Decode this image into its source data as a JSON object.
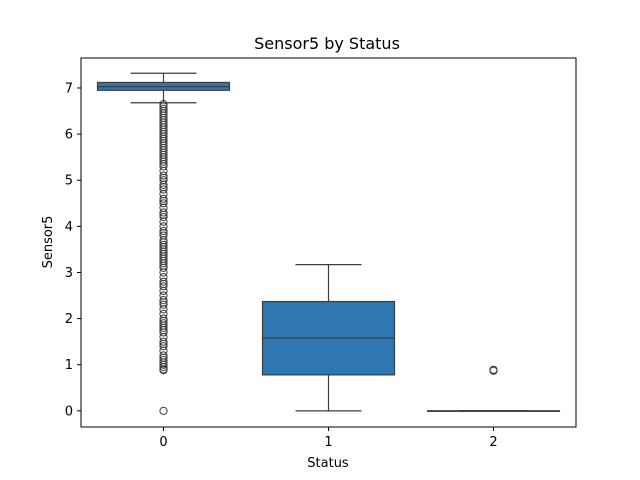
{
  "chart_data": {
    "type": "box",
    "title": "Sensor5 by Status",
    "xlabel": "Status",
    "ylabel": "Sensor5",
    "categories": [
      "0",
      "1",
      "2"
    ],
    "ylim": [
      -0.35,
      7.65
    ],
    "yticks": [
      0,
      1,
      2,
      3,
      4,
      5,
      6,
      7
    ],
    "grid": false,
    "box_color": "#2f77b1",
    "line_color": "#3d3d3d",
    "boxes": [
      {
        "category": "0",
        "whisker_low": 6.68,
        "q1": 6.95,
        "median": 7.03,
        "q3": 7.12,
        "whisker_high": 7.32,
        "outliers": [
          6.65,
          6.6,
          6.55,
          6.5,
          6.45,
          6.4,
          6.35,
          6.3,
          6.25,
          6.2,
          6.15,
          6.1,
          6.05,
          6.0,
          5.95,
          5.9,
          5.85,
          5.8,
          5.75,
          5.7,
          5.65,
          5.6,
          5.55,
          5.5,
          5.45,
          5.4,
          5.35,
          5.3,
          5.2,
          5.1,
          5.05,
          5.0,
          4.9,
          4.85,
          4.8,
          4.7,
          4.6,
          4.55,
          4.5,
          4.4,
          4.3,
          4.25,
          4.2,
          4.1,
          4.0,
          3.9,
          3.85,
          3.8,
          3.7,
          3.65,
          3.6,
          3.55,
          3.5,
          3.45,
          3.4,
          3.35,
          3.3,
          3.25,
          3.2,
          3.15,
          3.1,
          3.0,
          2.9,
          2.8,
          2.75,
          2.7,
          2.6,
          2.5,
          2.4,
          2.35,
          2.3,
          2.2,
          2.1,
          2.0,
          1.95,
          1.9,
          1.85,
          1.8,
          1.75,
          1.7,
          1.6,
          1.5,
          1.45,
          1.4,
          1.3,
          1.2,
          1.15,
          1.1,
          1.05,
          1.0,
          0.95,
          0.9,
          0.88,
          0.0
        ]
      },
      {
        "category": "1",
        "whisker_low": 0.0,
        "q1": 0.78,
        "median": 1.58,
        "q3": 2.37,
        "whisker_high": 3.17,
        "outliers": []
      },
      {
        "category": "2",
        "whisker_low": 0.0,
        "q1": 0.0,
        "median": 0.0,
        "q3": 0.0,
        "whisker_high": 0.0,
        "outliers": [
          0.87,
          0.88,
          0.89
        ]
      }
    ]
  }
}
